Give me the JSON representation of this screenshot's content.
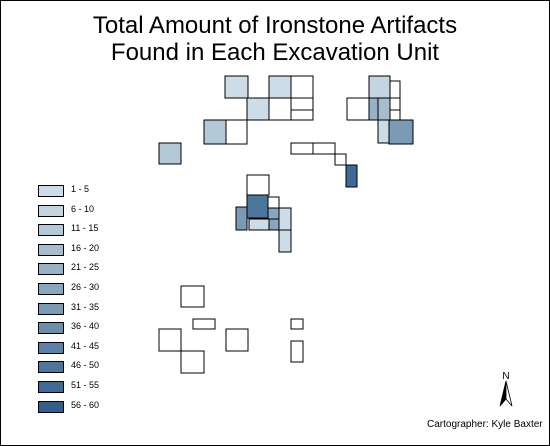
{
  "map": {
    "title_line1": "Total Amount of Ironstone Artifacts",
    "title_line2": "Found in Each Excavation Unit",
    "cartographer": "Cartographer: Kyle Baxter",
    "north_label": "N",
    "unit_outline_color": "#000000",
    "empty_unit_color": "#ffffff"
  },
  "legend": {
    "classes": [
      {
        "label": "1 - 5",
        "color": "#ccdde7"
      },
      {
        "label": "6 - 10",
        "color": "#c3d5e1"
      },
      {
        "label": "11 - 15",
        "color": "#b4c9d8"
      },
      {
        "label": "16 - 20",
        "color": "#a6bdd0"
      },
      {
        "label": "21 - 25",
        "color": "#97b1c6"
      },
      {
        "label": "26 - 30",
        "color": "#88a6be"
      },
      {
        "label": "31 - 35",
        "color": "#7a9ab6"
      },
      {
        "label": "36 - 40",
        "color": "#6b8eae"
      },
      {
        "label": "41 - 45",
        "color": "#5b82a6"
      },
      {
        "label": "46 - 50",
        "color": "#4d769d"
      },
      {
        "label": "51 - 55",
        "color": "#3f6a95"
      },
      {
        "label": "56 - 60",
        "color": "#315e8c"
      }
    ]
  }
}
